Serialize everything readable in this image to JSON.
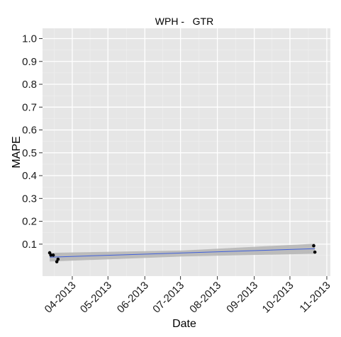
{
  "chart_data": {
    "type": "scatter",
    "title": "WPH -   GTR",
    "xlabel": "Date",
    "ylabel": "MAPE",
    "x_type": "date",
    "xlim": [
      "2013-03-07",
      "2013-11-04"
    ],
    "ylim": [
      -0.04,
      1.045
    ],
    "x_ticks": [
      {
        "date": "2013-04-01",
        "label": "04-2013"
      },
      {
        "date": "2013-05-01",
        "label": "05-2013"
      },
      {
        "date": "2013-06-01",
        "label": "06-2013"
      },
      {
        "date": "2013-07-01",
        "label": "07-2013"
      },
      {
        "date": "2013-08-01",
        "label": "08-2013"
      },
      {
        "date": "2013-09-01",
        "label": "09-2013"
      },
      {
        "date": "2013-10-01",
        "label": "10-2013"
      },
      {
        "date": "2013-11-01",
        "label": "11-2013"
      }
    ],
    "y_ticks": [
      0.1,
      0.2,
      0.3,
      0.4,
      0.5,
      0.6,
      0.7,
      0.8,
      0.9,
      1.0
    ],
    "y_tick_labels": [
      "0.1",
      "0.2",
      "0.3",
      "0.4",
      "0.5",
      "0.6",
      "0.7",
      "0.8",
      "0.9",
      "1.0"
    ],
    "points": [
      {
        "x": "2013-03-13",
        "y": 0.062
      },
      {
        "x": "2013-03-14",
        "y": 0.052
      },
      {
        "x": "2013-03-16",
        "y": 0.052
      },
      {
        "x": "2013-03-19",
        "y": 0.023
      },
      {
        "x": "2013-03-20",
        "y": 0.034
      },
      {
        "x": "2013-10-21",
        "y": 0.093
      },
      {
        "x": "2013-10-22",
        "y": 0.065
      }
    ],
    "trend": {
      "method": "linear",
      "start": {
        "x": "2013-03-13",
        "y": 0.043
      },
      "end": {
        "x": "2013-10-22",
        "y": 0.08
      },
      "ci_start": [
        0.024,
        0.062
      ],
      "ci_mid": [
        0.046,
        0.072
      ],
      "ci_end": [
        0.058,
        0.102
      ]
    },
    "grid": true,
    "legend": "none",
    "colors": {
      "panel": "#e6e6e6",
      "grid_major": "#ffffff",
      "grid_minor": "#f0f0f0",
      "trend_line": "#3f5fd9",
      "ci_band": "#b3b3b3",
      "points": "#000000"
    }
  }
}
